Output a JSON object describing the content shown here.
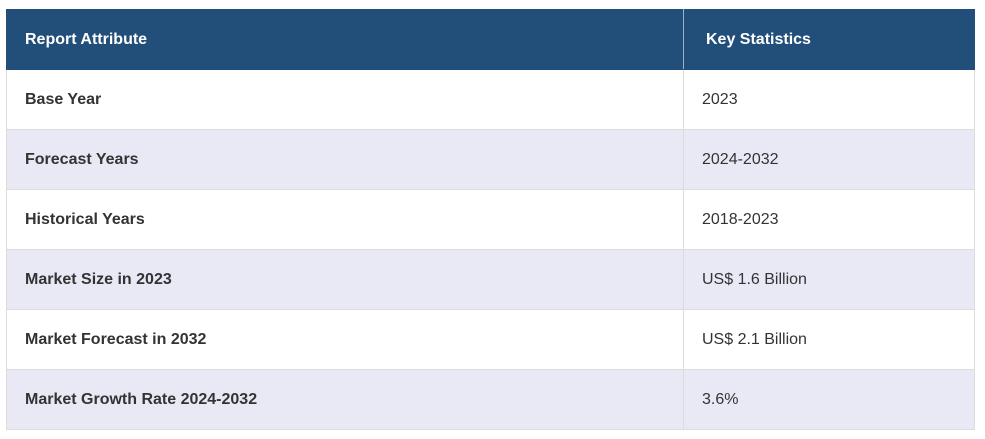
{
  "table": {
    "header": [
      "Report Attribute",
      "Key Statistics"
    ],
    "rows": [
      [
        "Base Year",
        "2023"
      ],
      [
        "Forecast Years",
        "2024-2032"
      ],
      [
        "Historical Years",
        "2018-2023"
      ],
      [
        "Market Size in 2023",
        "US$ 1.6 Billion"
      ],
      [
        "Market Forecast in 2032",
        "US$ 2.1 Billion"
      ],
      [
        "Market Growth Rate 2024-2032",
        "3.6%"
      ]
    ]
  }
}
